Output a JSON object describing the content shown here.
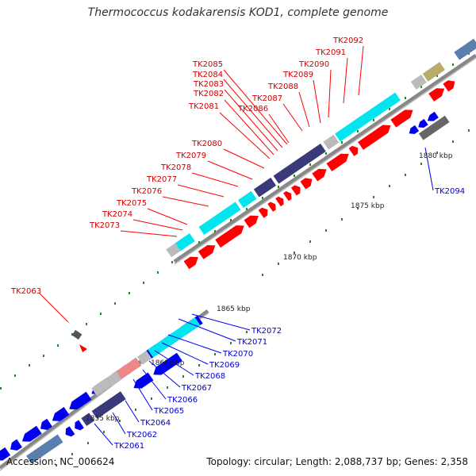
{
  "header": {
    "title": "Thermococcus kodakarensis KOD1, complete genome"
  },
  "footer": {
    "accession": "Accession: NC_006624",
    "summary": "Topology: circular; Length: 2,088,737 bp; Genes: 2,358"
  },
  "scale_labels": [
    "1855 kbp",
    "1860 kbp",
    "1865 kbp",
    "1870 kbp",
    "1875 kbp",
    "1880 kbp"
  ],
  "gene_labels_forward": [
    "TK2073",
    "TK2074",
    "TK2075",
    "TK2076",
    "TK2077",
    "TK2078",
    "TK2079",
    "TK2080",
    "TK2081",
    "TK2082",
    "TK2083",
    "TK2084",
    "TK2085",
    "TK2086",
    "TK2087",
    "TK2088",
    "TK2089",
    "TK2090",
    "TK2091",
    "TK2092"
  ],
  "gene_labels_reverse": [
    "TK2061",
    "TK2062",
    "TK2064",
    "TK2065",
    "TK2066",
    "TK2067",
    "TK2068",
    "TK2069",
    "TK2070",
    "TK2071",
    "TK2072",
    "TK2094"
  ],
  "gene_label_other": "TK2063",
  "colors": {
    "forward": "#ff0000",
    "reverse": "#0000ee",
    "cyan": "#00e5ee",
    "navy": "#3a3a7a",
    "gray": "#bbbbbb",
    "olive": "#b8ad6a",
    "steel": "#5a7fae",
    "pink": "#ee8888",
    "backbone": "#888888",
    "tick": "#228822"
  }
}
